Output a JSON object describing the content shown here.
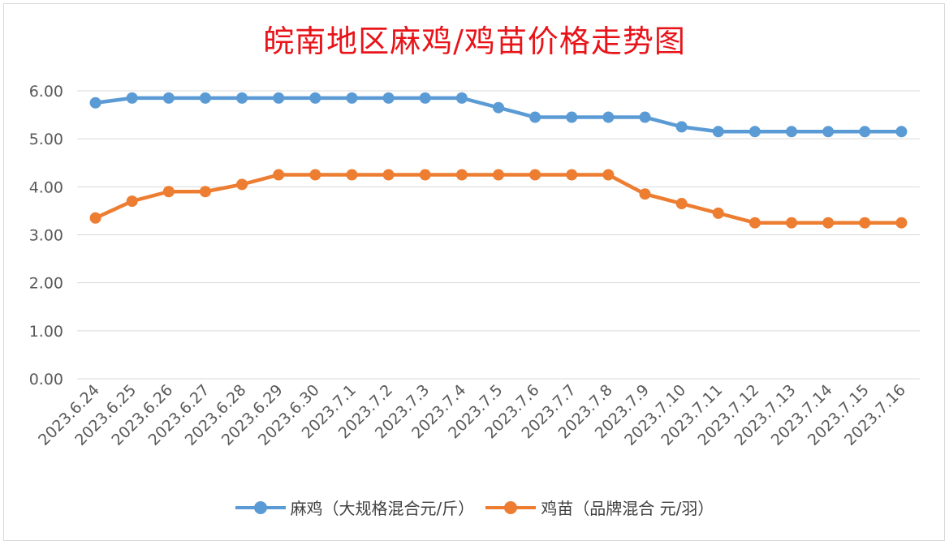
{
  "chart_data": {
    "type": "line",
    "title": "皖南地区麻鸡/鸡苗价格走势图",
    "categories": [
      "2023.6.24",
      "2023.6.25",
      "2023.6.26",
      "2023.6.27",
      "2023.6.28",
      "2023.6.29",
      "2023.6.30",
      "2023.7.1",
      "2023.7.2",
      "2023.7.3",
      "2023.7.4",
      "2023.7.5",
      "2023.7.6",
      "2023.7.7",
      "2023.7.8",
      "2023.7.9",
      "2023.7.10",
      "2023.7.11",
      "2023.7.12",
      "2023.7.13",
      "2023.7.14",
      "2023.7.15",
      "2023.7.16"
    ],
    "series": [
      {
        "name": "麻鸡（大规格混合元/斤）",
        "color": "#5b9bd5",
        "values": [
          5.75,
          5.85,
          5.85,
          5.85,
          5.85,
          5.85,
          5.85,
          5.85,
          5.85,
          5.85,
          5.85,
          5.65,
          5.45,
          5.45,
          5.45,
          5.45,
          5.25,
          5.15,
          5.15,
          5.15,
          5.15,
          5.15,
          5.15
        ]
      },
      {
        "name": "鸡苗（品牌混合 元/羽）",
        "color": "#ed7d31",
        "values": [
          3.35,
          3.7,
          3.9,
          3.9,
          4.05,
          4.25,
          4.25,
          4.25,
          4.25,
          4.25,
          4.25,
          4.25,
          4.25,
          4.25,
          4.25,
          3.85,
          3.65,
          3.45,
          3.25,
          3.25,
          3.25,
          3.25,
          3.25
        ]
      }
    ],
    "yticks": [
      "0.00",
      "1.00",
      "2.00",
      "3.00",
      "4.00",
      "5.00",
      "6.00"
    ],
    "ylim": [
      0,
      6
    ],
    "grid": true,
    "legend_position": "bottom"
  }
}
